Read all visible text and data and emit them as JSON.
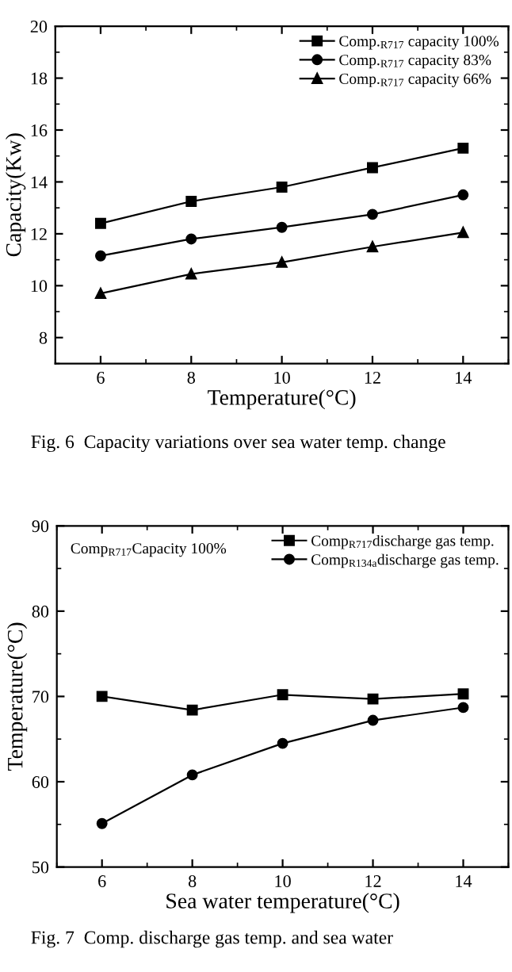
{
  "chart_data": [
    {
      "type": "line",
      "xlabel": "Temperature(°C)",
      "ylabel": "Capacity(Kw)",
      "x": [
        6,
        8,
        10,
        12,
        14
      ],
      "xlim": [
        5,
        15
      ],
      "xticks": [
        6,
        8,
        10,
        12,
        14
      ],
      "ylim": [
        7,
        20
      ],
      "yticks": [
        8,
        10,
        12,
        14,
        16,
        18,
        20
      ],
      "grid": false,
      "legend": "top right",
      "series": [
        {
          "name": "Comp.$_{R717}$ capacity 100%",
          "color": "#000000",
          "marker": "square",
          "values": [
            12.4,
            13.25,
            13.8,
            14.55,
            15.3
          ]
        },
        {
          "name": "Comp.$_{R717}$ capacity 83%",
          "color": "#000000",
          "marker": "circle",
          "values": [
            11.15,
            11.8,
            12.25,
            12.75,
            13.5
          ]
        },
        {
          "name": "Comp.$_{R717}$ capacity 66%",
          "color": "#000000",
          "marker": "triangle",
          "values": [
            9.7,
            10.45,
            10.9,
            11.5,
            12.05
          ]
        }
      ],
      "annotations": [
        "Fig. 6  Capacity variations over sea water temp. change"
      ]
    },
    {
      "type": "line",
      "xlabel": "Sea water temperature(°C)",
      "ylabel": "Temperature(°C)",
      "x": [
        6,
        8,
        10,
        12,
        14
      ],
      "xlim": [
        5,
        15
      ],
      "xticks": [
        6,
        8,
        10,
        12,
        14
      ],
      "ylim": [
        50,
        90
      ],
      "yticks": [
        50,
        60,
        70,
        80,
        90
      ],
      "grid": false,
      "legend": "top right",
      "series": [
        {
          "name": "Comp$_{R717}$discharge gas temp.",
          "color": "#000000",
          "marker": "square",
          "values": [
            70,
            68.4,
            70.2,
            69.7,
            70.3
          ]
        },
        {
          "name": "Comp$_{R134a}$discharge gas temp.",
          "color": "#000000",
          "marker": "circle",
          "values": [
            55.1,
            60.8,
            64.5,
            67.2,
            68.7
          ]
        }
      ],
      "annotations": [
        "Comp$_{R717}$Capacity 100%",
        "Fig. 7  Comp. discharge gas temp. and sea water"
      ]
    }
  ]
}
